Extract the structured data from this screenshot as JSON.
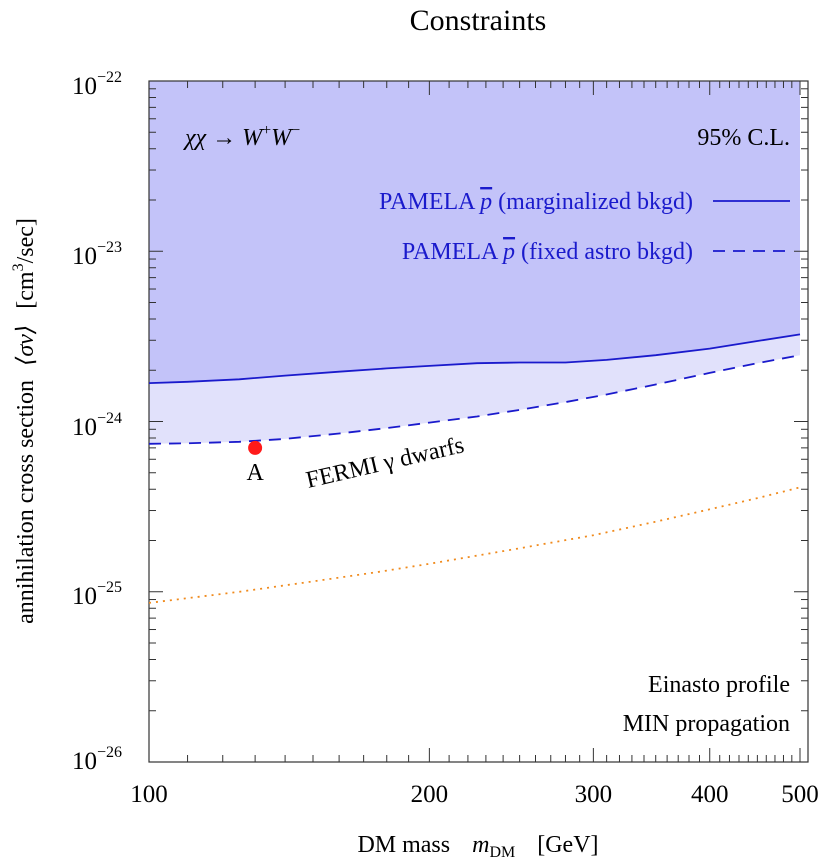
{
  "chart_data": {
    "type": "line",
    "title": "Constraints",
    "xlabel": {
      "prefix": "DM mass",
      "symbol": "m",
      "symbol_sub": "DM",
      "unit": "[GeV]"
    },
    "ylabel": {
      "prefix": "annihilation cross section",
      "symbol": "⟨σv⟩",
      "unit_open": "[cm",
      "unit_sup": "3",
      "unit_close": "/sec]"
    },
    "xscale": "log",
    "yscale": "log",
    "xlim": [
      100,
      510
    ],
    "ylim": [
      1e-26,
      1e-22
    ],
    "x_ticks": [
      {
        "value": 100,
        "label": "100"
      },
      {
        "value": 200,
        "label": "200"
      },
      {
        "value": 300,
        "label": "300"
      },
      {
        "value": 400,
        "label": "400"
      },
      {
        "value": 500,
        "label": "500"
      }
    ],
    "y_ticks": [
      {
        "value": 1e-26,
        "base": "10",
        "exp": "−26"
      },
      {
        "value": 1e-25,
        "base": "10",
        "exp": "−25"
      },
      {
        "value": 1e-24,
        "base": "10",
        "exp": "−24"
      },
      {
        "value": 1e-23,
        "base": "10",
        "exp": "−23"
      },
      {
        "value": 1e-22,
        "base": "10",
        "exp": "−22"
      }
    ],
    "channel": {
      "lhs": "χχ → W",
      "w1_sup": "+",
      "mid": "W",
      "w2_sup": "−"
    },
    "confidence_label": "95% C.L.",
    "profile_note": "Einasto profile",
    "propagation_note": "MIN propagation",
    "series": [
      {
        "name": "PAMELA p̄ (marginalized bkgd)",
        "legend_pre": "PAMELA ",
        "legend_sym": "p",
        "legend_post": " (marginalized bkgd)",
        "style": "solid",
        "color": "#1a1acc",
        "fill": "#c3c3f9",
        "x": [
          100,
          110,
          125,
          140,
          160,
          180,
          200,
          225,
          250,
          280,
          310,
          350,
          400,
          450,
          500
        ],
        "y": [
          1.68e-24,
          1.71e-24,
          1.77e-24,
          1.86e-24,
          1.96e-24,
          2.05e-24,
          2.12e-24,
          2.2e-24,
          2.22e-24,
          2.22e-24,
          2.3e-24,
          2.45e-24,
          2.68e-24,
          2.97e-24,
          3.25e-24
        ]
      },
      {
        "name": "PAMELA p̄ (fixed astro bkgd)",
        "legend_pre": "PAMELA ",
        "legend_sym": "p",
        "legend_post": " (fixed astro bkgd)",
        "style": "dashed",
        "color": "#1a1acc",
        "fill": "#e1e1fb",
        "x": [
          100,
          110,
          125,
          140,
          160,
          180,
          200,
          225,
          250,
          280,
          310,
          350,
          400,
          450,
          500
        ],
        "y": [
          7.4e-25,
          7.45e-25,
          7.6e-25,
          7.9e-25,
          8.5e-25,
          9.15e-25,
          9.85e-25,
          1.07e-24,
          1.17e-24,
          1.3e-24,
          1.44e-24,
          1.65e-24,
          1.93e-24,
          2.2e-24,
          2.45e-24
        ]
      },
      {
        "name": "FERMI γ dwarfs",
        "label": "FERMI γ dwarfs",
        "label_x": 180,
        "label_y": 5.2e-25,
        "label_angle_deg": -13,
        "style": "dotted",
        "color": "#f08a1c",
        "x": [
          100,
          125,
          150,
          175,
          200,
          250,
          300,
          350,
          400,
          450,
          500
        ],
        "y": [
          8.6e-26,
          1e-25,
          1.15e-25,
          1.3e-25,
          1.46e-25,
          1.8e-25,
          2.15e-25,
          2.58e-25,
          3.05e-25,
          3.55e-25,
          4.1e-25
        ]
      }
    ],
    "points": [
      {
        "label": "A",
        "x": 130,
        "y": 7e-25,
        "color": "#ff1a1a"
      }
    ]
  }
}
